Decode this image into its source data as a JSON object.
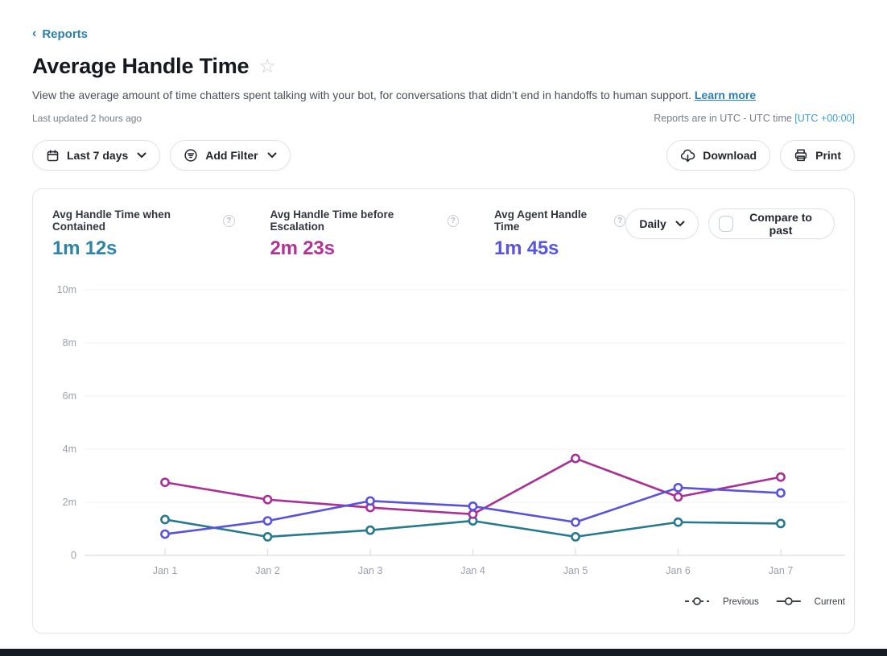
{
  "breadcrumb": {
    "back_label": "Reports"
  },
  "header": {
    "title": "Average Handle Time",
    "description": "View the average amount of time chatters spent talking with your bot, for conversations that didn’t end in handoffs to human support.",
    "learn_more_label": "Learn more",
    "last_updated": "Last updated 2 hours ago",
    "timezone_note": "Reports are in UTC - UTC time",
    "timezone_value": "[UTC +00:00]"
  },
  "toolbar": {
    "date_range_label": "Last 7 days",
    "add_filter_label": "Add Filter",
    "download_label": "Download",
    "print_label": "Print"
  },
  "panel": {
    "metrics": [
      {
        "label": "Avg Handle Time when Contained",
        "value": "1m 12s",
        "color": "#2d84a8"
      },
      {
        "label": "Avg Handle Time before Escalation",
        "value": "2m 23s",
        "color": "#b13399"
      },
      {
        "label": "Avg Agent Handle Time",
        "value": "1m 45s",
        "color": "#5a55e0"
      }
    ],
    "granularity_label": "Daily",
    "compare_label": "Compare to past",
    "compare_checked": false
  },
  "chart_data": {
    "type": "line",
    "x": [
      "Jan 1",
      "Jan 2",
      "Jan 3",
      "Jan 4",
      "Jan 5",
      "Jan 6",
      "Jan 7"
    ],
    "series": [
      {
        "name": "Avg Handle Time when Contained",
        "color": "#26798e",
        "values": [
          1.35,
          0.7,
          0.95,
          1.3,
          0.7,
          1.25,
          1.2
        ]
      },
      {
        "name": "Avg Handle Time before Escalation",
        "color": "#a93095",
        "values": [
          2.75,
          2.1,
          1.8,
          1.55,
          3.65,
          2.2,
          2.95
        ]
      },
      {
        "name": "Avg Agent Handle Time",
        "color": "#5952dd",
        "values": [
          0.8,
          1.3,
          2.05,
          1.85,
          1.25,
          2.55,
          2.35
        ]
      }
    ],
    "value_unit": "minutes",
    "ylim": [
      0,
      10
    ],
    "yticks": [
      {
        "v": 0,
        "label": "0"
      },
      {
        "v": 2,
        "label": "2m"
      },
      {
        "v": 4,
        "label": "4m"
      },
      {
        "v": 6,
        "label": "6m"
      },
      {
        "v": 8,
        "label": "8m"
      },
      {
        "v": 10,
        "label": "10m"
      }
    ],
    "grid": true,
    "legend": [
      {
        "label": "Previous",
        "style": "dashed"
      },
      {
        "label": "Current",
        "style": "solid"
      }
    ],
    "legend_position": "bottom-right"
  }
}
